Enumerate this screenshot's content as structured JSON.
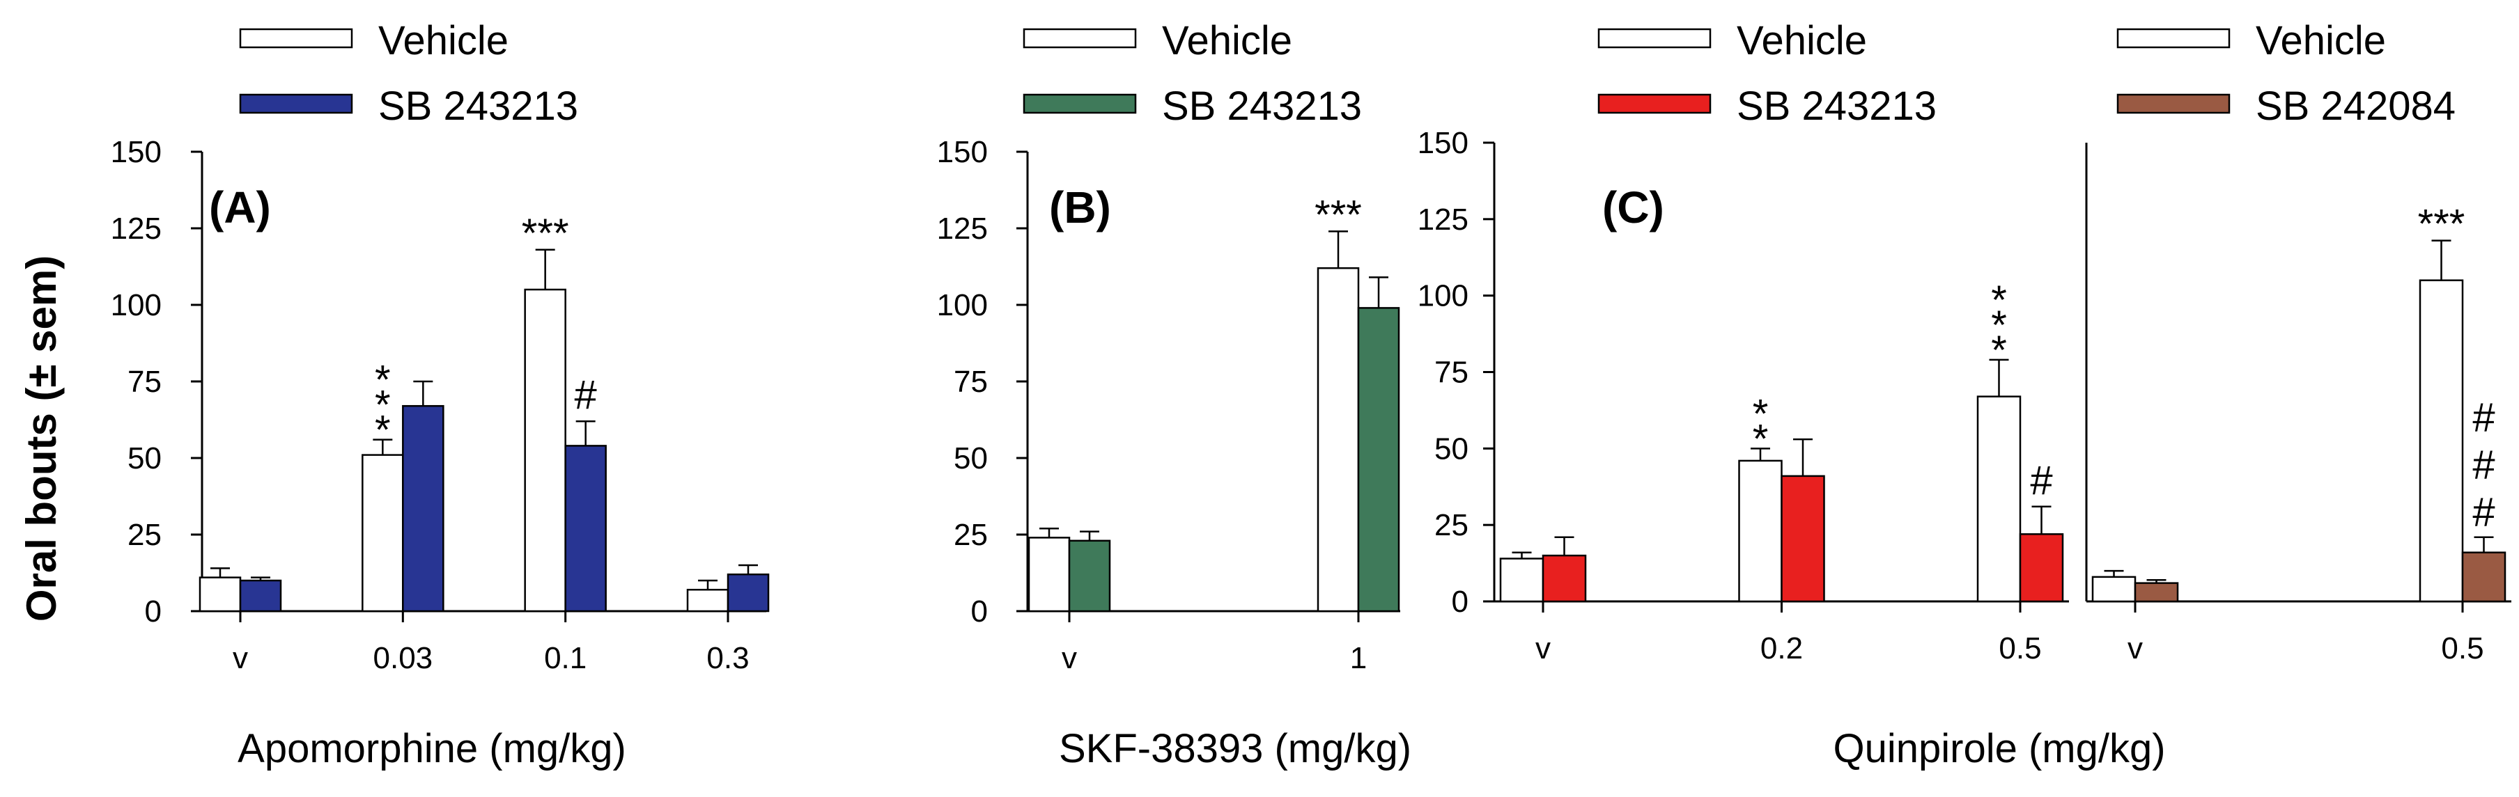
{
  "colors": {
    "vehicle": "#ffffff",
    "sb243213_A": "#283593",
    "sb243213_B": "#3f7a5a",
    "sb243213_C": "#e8201f",
    "sb242084": "#9a5a43",
    "stroke": "#000000"
  },
  "y_axis_title": "Oral bouts (± sem)",
  "chart_data": [
    {
      "type": "bar",
      "panel_label": "(A)",
      "xlabel": "Apomorphine (mg/kg)",
      "ylabel": "Oral bouts (± sem)",
      "ylim": [
        0,
        150
      ],
      "yticks": [
        "0",
        "25",
        "50",
        "75",
        "100",
        "125",
        "150"
      ],
      "categories": [
        "v",
        "0.03",
        "0.1",
        "0.3"
      ],
      "legend": [
        "Vehicle",
        "SB 243213"
      ],
      "series": [
        {
          "name": "Vehicle",
          "color_key": "vehicle",
          "values": [
            11,
            51,
            105,
            7
          ],
          "errors": [
            3,
            5,
            13,
            3
          ]
        },
        {
          "name": "SB 243213",
          "color_key": "sb243213_A",
          "values": [
            10,
            67,
            54,
            12
          ],
          "errors": [
            1,
            8,
            8,
            3
          ]
        }
      ],
      "annotations": [
        {
          "category": 1,
          "series": 0,
          "text": "***",
          "orientation": "vertical"
        },
        {
          "category": 2,
          "series": 0,
          "text": "***",
          "orientation": "horizontal"
        },
        {
          "category": 2,
          "series": 1,
          "text": "#",
          "orientation": "horizontal"
        }
      ]
    },
    {
      "type": "bar",
      "panel_label": "(B)",
      "xlabel": "SKF-38393 (mg/kg)",
      "ylim": [
        0,
        150
      ],
      "yticks": [
        "0",
        "25",
        "50",
        "75",
        "100",
        "125",
        "150"
      ],
      "categories": [
        "v",
        "1"
      ],
      "legend": [
        "Vehicle",
        "SB 243213"
      ],
      "series": [
        {
          "name": "Vehicle",
          "color_key": "vehicle",
          "values": [
            24,
            112
          ],
          "errors": [
            3,
            12
          ]
        },
        {
          "name": "SB 243213",
          "color_key": "sb243213_B",
          "values": [
            23,
            99
          ],
          "errors": [
            3,
            10
          ]
        }
      ],
      "annotations": [
        {
          "category": 1,
          "series": 0,
          "text": "***",
          "orientation": "horizontal"
        }
      ]
    },
    {
      "type": "bar",
      "panel_label": "(C)",
      "xlabel": "Quinpirole (mg/kg)",
      "ylim": [
        0,
        150
      ],
      "yticks": [
        "0",
        "25",
        "50",
        "75",
        "100",
        "125",
        "150"
      ],
      "categories": [
        "v",
        "0.2",
        "0.5"
      ],
      "legend": [
        "Vehicle",
        "SB 243213"
      ],
      "series": [
        {
          "name": "Vehicle",
          "color_key": "vehicle",
          "values": [
            14,
            46,
            67
          ],
          "errors": [
            2,
            4,
            12
          ]
        },
        {
          "name": "SB 243213",
          "color_key": "sb243213_C",
          "values": [
            15,
            41,
            22
          ],
          "errors": [
            6,
            12,
            9
          ]
        }
      ],
      "annotations": [
        {
          "category": 1,
          "series": 0,
          "text": "**",
          "orientation": "vertical"
        },
        {
          "category": 2,
          "series": 0,
          "text": "***",
          "orientation": "vertical"
        },
        {
          "category": 2,
          "series": 1,
          "text": "#",
          "orientation": "horizontal"
        }
      ]
    },
    {
      "type": "bar",
      "panel_label": "",
      "xlabel": "",
      "ylim": [
        0,
        150
      ],
      "yticks": [],
      "categories": [
        "v",
        "0.5"
      ],
      "legend": [
        "Vehicle",
        "SB 242084"
      ],
      "series": [
        {
          "name": "Vehicle",
          "color_key": "vehicle",
          "values": [
            8,
            105
          ],
          "errors": [
            2,
            13
          ]
        },
        {
          "name": "SB 242084",
          "color_key": "sb242084",
          "values": [
            6,
            16
          ],
          "errors": [
            1,
            5
          ]
        }
      ],
      "annotations": [
        {
          "category": 1,
          "series": 0,
          "text": "***",
          "orientation": "horizontal"
        },
        {
          "category": 1,
          "series": 1,
          "text": "###",
          "orientation": "vertical"
        }
      ]
    }
  ]
}
